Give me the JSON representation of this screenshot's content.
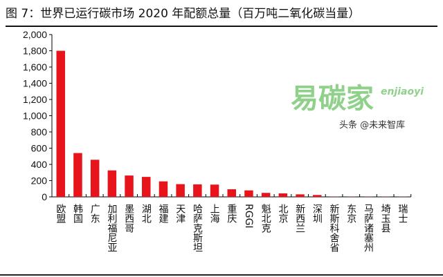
{
  "chart_data": {
    "type": "bar",
    "title": "图 7：世界已运行碳市场 2020 年配额总量（百万吨二氧化碳当量）",
    "xlabel": "",
    "ylabel": "",
    "ylim": [
      0,
      2000
    ],
    "yticks": [
      "0",
      "200",
      "400",
      "600",
      "800",
      "1,000",
      "1,200",
      "1,400",
      "1,600",
      "1,800",
      "2,000"
    ],
    "categories": [
      "欧盟",
      "韩国",
      "广东",
      "加利福尼亚",
      "墨西哥",
      "湖北",
      "福建",
      "天津",
      "哈萨克斯坦",
      "上海",
      "重庆",
      "RGGI",
      "魁北克",
      "北京",
      "新西兰",
      "深圳",
      "新斯科舍省",
      "东京",
      "马萨诸塞州",
      "埼玉县",
      "瑞士"
    ],
    "values": [
      1800,
      540,
      457,
      326,
      263,
      246,
      191,
      157,
      154,
      151,
      94,
      80,
      49,
      43,
      31,
      23,
      2,
      2,
      2,
      2,
      2
    ],
    "bar_color": "#e8141b",
    "grid": false,
    "legend": "none"
  },
  "watermark": {
    "logo": "易碳家",
    "logo_sub": "enjiaoyi",
    "credit": "头条 @未来智库"
  }
}
